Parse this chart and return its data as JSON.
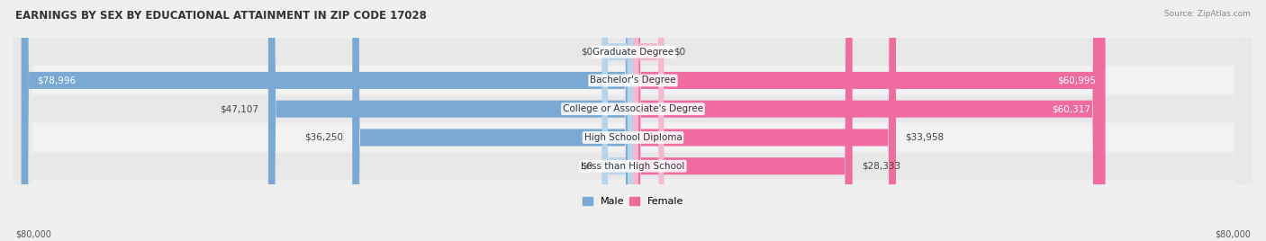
{
  "title": "EARNINGS BY SEX BY EDUCATIONAL ATTAINMENT IN ZIP CODE 17028",
  "source": "Source: ZipAtlas.com",
  "categories": [
    "Less than High School",
    "High School Diploma",
    "College or Associate's Degree",
    "Bachelor's Degree",
    "Graduate Degree"
  ],
  "male_values": [
    0,
    36250,
    47107,
    78996,
    0
  ],
  "female_values": [
    28333,
    33958,
    60317,
    60995,
    0
  ],
  "male_labels": [
    "$0",
    "$36,250",
    "$47,107",
    "$78,996",
    "$0"
  ],
  "female_labels": [
    "$28,333",
    "$33,958",
    "$60,317",
    "$60,995",
    "$0"
  ],
  "male_color": "#7aaad4",
  "female_color": "#f06ba0",
  "male_color_light": "#b8d4ea",
  "female_color_light": "#f5b8d0",
  "max_value": 80000,
  "stub_value": 4000,
  "title_fontsize": 8.5,
  "label_fontsize": 7.5,
  "category_fontsize": 7.5,
  "axis_label_fontsize": 7,
  "legend_fontsize": 8
}
